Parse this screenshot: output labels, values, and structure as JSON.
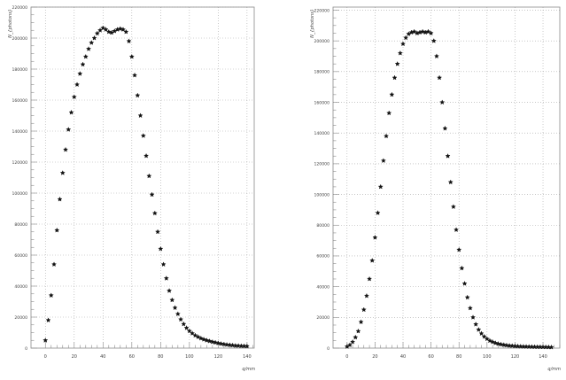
{
  "colors": {
    "marker": "#111111",
    "grid": "#a8a8a8",
    "frame": "#8a8a8a",
    "text": "#444444",
    "background": "#ffffff"
  },
  "chart_data": [
    {
      "type": "scatter",
      "title": "",
      "xlabel": "q/mm",
      "ylabel": "N_{photons}",
      "xlim": [
        -10,
        145
      ],
      "ylim": [
        0,
        220000
      ],
      "xticks": [
        0,
        20,
        40,
        60,
        80,
        100,
        120,
        140
      ],
      "yticks": [
        0,
        20000,
        40000,
        60000,
        80000,
        100000,
        120000,
        140000,
        160000,
        180000,
        200000,
        220000
      ],
      "grid": true,
      "legend": "none",
      "series": [
        {
          "marker": "star",
          "x": [
            0,
            2,
            4,
            6,
            8,
            10,
            12,
            14,
            16,
            18,
            20,
            22,
            24,
            26,
            28,
            30,
            32,
            34,
            36,
            38,
            40,
            42,
            44,
            46,
            48,
            50,
            52,
            54,
            56,
            58,
            60,
            62,
            64,
            66,
            68,
            70,
            72,
            74,
            76,
            78,
            80,
            82,
            84,
            86,
            88,
            90,
            92,
            94,
            96,
            98,
            100,
            102,
            104,
            106,
            108,
            110,
            112,
            114,
            116,
            118,
            120,
            122,
            124,
            126,
            128,
            130,
            132,
            134,
            136,
            138,
            140
          ],
          "y": [
            5000,
            18000,
            34000,
            54000,
            76000,
            96000,
            113000,
            128000,
            141000,
            152000,
            162000,
            170000,
            177000,
            183000,
            188000,
            193000,
            197000,
            200000,
            203000,
            205000,
            206500,
            205500,
            204000,
            203500,
            204500,
            205500,
            206000,
            205500,
            204000,
            198000,
            188000,
            176000,
            163000,
            150000,
            137000,
            124000,
            111000,
            99000,
            87000,
            75000,
            64000,
            54000,
            45000,
            37000,
            31000,
            26000,
            22000,
            18500,
            15500,
            13000,
            11000,
            9500,
            8200,
            7200,
            6300,
            5600,
            5000,
            4500,
            4000,
            3600,
            3200,
            2800,
            2500,
            2200,
            2000,
            1800,
            1600,
            1500,
            1400,
            1300,
            1200
          ]
        }
      ]
    },
    {
      "type": "scatter",
      "title": "",
      "xlabel": "q/mm",
      "ylabel": "N_{photons}",
      "xlim": [
        -10,
        152
      ],
      "ylim": [
        0,
        222000
      ],
      "xticks": [
        0,
        20,
        40,
        60,
        80,
        100,
        120,
        140
      ],
      "yticks": [
        0,
        20000,
        40000,
        60000,
        80000,
        100000,
        120000,
        140000,
        160000,
        180000,
        200000,
        220000
      ],
      "grid": true,
      "legend": "none",
      "series": [
        {
          "marker": "star",
          "x": [
            0,
            2,
            4,
            6,
            8,
            10,
            12,
            14,
            16,
            18,
            20,
            22,
            24,
            26,
            28,
            30,
            32,
            34,
            36,
            38,
            40,
            42,
            44,
            46,
            48,
            50,
            52,
            54,
            56,
            58,
            60,
            62,
            64,
            66,
            68,
            70,
            72,
            74,
            76,
            78,
            80,
            82,
            84,
            86,
            88,
            90,
            92,
            94,
            96,
            98,
            100,
            102,
            104,
            106,
            108,
            110,
            112,
            114,
            116,
            118,
            120,
            122,
            124,
            126,
            128,
            130,
            132,
            134,
            136,
            138,
            140,
            142,
            144,
            146
          ],
          "y": [
            1000,
            2000,
            4000,
            7000,
            11000,
            17000,
            25000,
            34000,
            45000,
            57000,
            72000,
            88000,
            105000,
            122000,
            138000,
            153000,
            165000,
            176000,
            185000,
            192000,
            198000,
            202000,
            204500,
            205500,
            206000,
            205000,
            205500,
            206000,
            205500,
            206000,
            205000,
            200000,
            190000,
            176000,
            160000,
            143000,
            125000,
            108000,
            92000,
            77000,
            64000,
            52000,
            42000,
            33000,
            26000,
            20000,
            15500,
            12000,
            9500,
            7500,
            6000,
            4800,
            4000,
            3300,
            2800,
            2400,
            2100,
            1800,
            1600,
            1450,
            1300,
            1200,
            1100,
            1000,
            950,
            900,
            850,
            800,
            760,
            720,
            680,
            640,
            600,
            560
          ]
        }
      ]
    }
  ]
}
